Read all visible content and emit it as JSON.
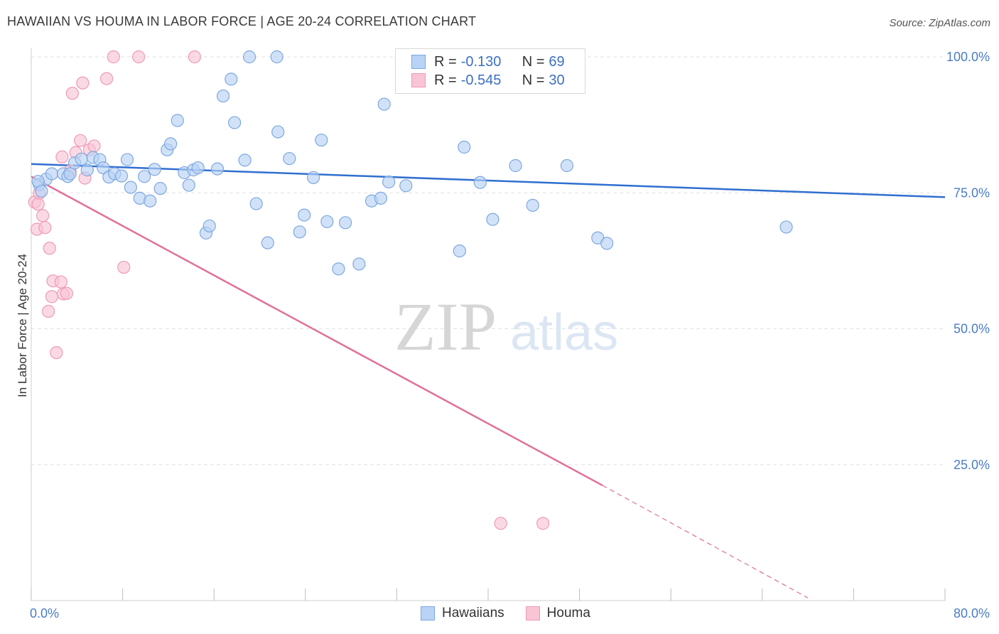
{
  "header": {
    "title": "HAWAIIAN VS HOUMA IN LABOR FORCE | AGE 20-24 CORRELATION CHART",
    "source": "Source: ZipAtlas.com"
  },
  "legend": {
    "rows": [
      {
        "r_label": "R =",
        "r_value": "-0.130",
        "n_label": "N =",
        "n_value": "69"
      },
      {
        "r_label": "R =",
        "r_value": "-0.545",
        "n_label": "N =",
        "n_value": "30"
      }
    ],
    "bottom": [
      "Hawaiians",
      "Houma"
    ]
  },
  "colors": {
    "hawaiians_fill": "#b8d3f5",
    "hawaiians_stroke": "#7ea8e0",
    "hawaiians_line": "#2f6fd0",
    "houma_fill": "#f9c5d5",
    "houma_stroke": "#ee9ab5",
    "houma_line": "#e0709a",
    "tick_text": "#4a7cc7",
    "watermark": "#d0d0d0"
  },
  "watermark": {
    "zip": "ZIP",
    "atlas": "atlas"
  },
  "chart_data": {
    "type": "scatter",
    "title": "HAWAIIAN VS HOUMA IN LABOR FORCE | AGE 20-24 CORRELATION CHART",
    "xlabel": "",
    "ylabel": "In Labor Force | Age 20-24",
    "xlim": [
      0,
      80
    ],
    "ylim": [
      0,
      103
    ],
    "x_tick_labels": [
      "0.0%",
      "80.0%"
    ],
    "y_ticks": [
      25,
      50,
      75,
      100
    ],
    "y_tick_labels": [
      "25.0%",
      "50.0%",
      "75.0%",
      "100.0%"
    ],
    "grid": true,
    "legend_position": "top-center",
    "series": [
      {
        "name": "Hawaiians",
        "points": [
          [
            0.7,
            76.5
          ],
          [
            1.3,
            77.5
          ],
          [
            1.8,
            78.5
          ],
          [
            2.8,
            78.5
          ],
          [
            3.2,
            78.0
          ],
          [
            3.4,
            78.5
          ],
          [
            3.8,
            80.5
          ],
          [
            4.4,
            81.2
          ],
          [
            4.9,
            79.2
          ],
          [
            5.4,
            81.5
          ],
          [
            6.0,
            81.1
          ],
          [
            6.3,
            79.6
          ],
          [
            6.8,
            77.9
          ],
          [
            7.3,
            78.5
          ],
          [
            7.9,
            78.1
          ],
          [
            8.4,
            81.1
          ],
          [
            8.7,
            76.0
          ],
          [
            9.5,
            74.0
          ],
          [
            9.9,
            78.0
          ],
          [
            10.4,
            73.5
          ],
          [
            10.8,
            79.3
          ],
          [
            11.3,
            75.8
          ],
          [
            11.9,
            82.9
          ],
          [
            12.2,
            84.0
          ],
          [
            12.8,
            88.3
          ],
          [
            13.4,
            78.7
          ],
          [
            13.8,
            76.4
          ],
          [
            14.2,
            79.2
          ],
          [
            14.6,
            79.6
          ],
          [
            15.3,
            67.6
          ],
          [
            15.6,
            68.9
          ],
          [
            16.3,
            79.4
          ],
          [
            16.8,
            92.8
          ],
          [
            17.5,
            95.9
          ],
          [
            17.8,
            87.9
          ],
          [
            18.7,
            81.0
          ],
          [
            19.1,
            100.0
          ],
          [
            19.7,
            73.0
          ],
          [
            20.7,
            65.8
          ],
          [
            21.5,
            100.0
          ],
          [
            21.6,
            86.2
          ],
          [
            22.6,
            81.3
          ],
          [
            23.5,
            67.8
          ],
          [
            23.9,
            70.9
          ],
          [
            24.7,
            77.8
          ],
          [
            25.4,
            84.7
          ],
          [
            25.9,
            69.7
          ],
          [
            26.9,
            61.0
          ],
          [
            27.5,
            69.5
          ],
          [
            28.7,
            61.9
          ],
          [
            29.8,
            73.5
          ],
          [
            30.6,
            74.0
          ],
          [
            30.9,
            91.3
          ],
          [
            31.3,
            77.0
          ],
          [
            32.8,
            76.3
          ],
          [
            36.6,
            98.9
          ],
          [
            37.5,
            64.3
          ],
          [
            37.9,
            83.4
          ],
          [
            39.3,
            76.9
          ],
          [
            40.4,
            70.1
          ],
          [
            40.9,
            100.0
          ],
          [
            42.4,
            80.0
          ],
          [
            43.9,
            72.7
          ],
          [
            46.9,
            80.0
          ],
          [
            49.6,
            66.7
          ],
          [
            50.4,
            65.7
          ],
          [
            66.1,
            68.7
          ],
          [
            0.6,
            77.1
          ],
          [
            0.9,
            75.3
          ]
        ],
        "trend": {
          "x0": 0,
          "y0": 80.3,
          "x1": 80,
          "y1": 74.2
        }
      },
      {
        "name": "Houma",
        "points": [
          [
            0.3,
            73.3
          ],
          [
            0.5,
            68.3
          ],
          [
            0.7,
            74.9
          ],
          [
            1.0,
            70.8
          ],
          [
            1.2,
            68.6
          ],
          [
            1.5,
            53.2
          ],
          [
            1.6,
            64.8
          ],
          [
            1.8,
            55.9
          ],
          [
            1.9,
            58.8
          ],
          [
            2.2,
            45.6
          ],
          [
            2.6,
            58.6
          ],
          [
            2.8,
            56.4
          ],
          [
            3.1,
            56.5
          ],
          [
            3.4,
            79.0
          ],
          [
            3.6,
            93.3
          ],
          [
            3.9,
            82.4
          ],
          [
            4.3,
            84.6
          ],
          [
            4.5,
            95.2
          ],
          [
            4.7,
            77.7
          ],
          [
            5.1,
            82.9
          ],
          [
            5.5,
            83.6
          ],
          [
            6.6,
            96.0
          ],
          [
            7.2,
            100.0
          ],
          [
            8.1,
            61.3
          ],
          [
            9.4,
            100.0
          ],
          [
            2.7,
            81.6
          ],
          [
            14.3,
            100.0
          ],
          [
            0.6,
            72.9
          ],
          [
            41.1,
            14.2
          ],
          [
            44.8,
            14.2
          ]
        ],
        "trend": {
          "x0": 0,
          "y0": 78.0,
          "x1": 50,
          "y1": 21.2,
          "dash_to_x": 68,
          "dash_to_y": 0.5
        }
      }
    ]
  }
}
